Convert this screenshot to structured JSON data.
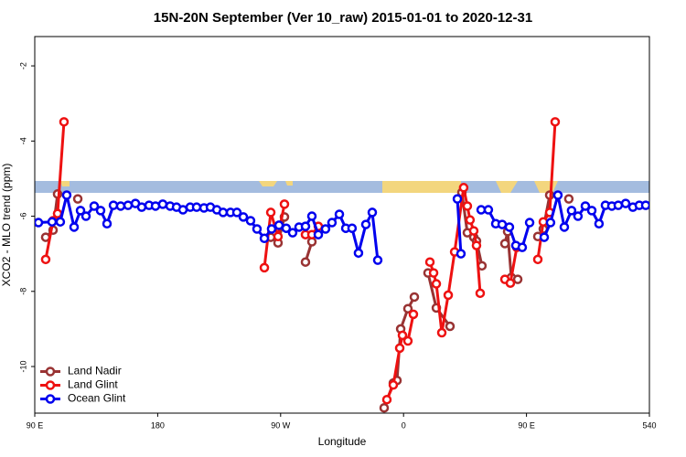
{
  "chart_data": {
    "type": "line",
    "title": "15N-20N September (Ver 10_raw)   2015-01-01 to 2020-12-31",
    "x_label": "Longitude",
    "y_label": "XCO2 - MLO trend (ppm)",
    "xlim": [
      90,
      540
    ],
    "xticks": [
      {
        "value": 90,
        "label": "90 E"
      },
      180,
      {
        "value": 270,
        "label": "90 W"
      },
      {
        "value": 360,
        "label": "0"
      },
      {
        "value": 450,
        "label": "90 E"
      },
      540
    ],
    "ylim": [
      -11.24,
      -1.22
    ],
    "yticks": [
      -2,
      -4,
      -6,
      -8,
      -10
    ],
    "legend": "bottom-left",
    "series": [
      {
        "name": "Land Nadir",
        "color": "#993333",
        "x": [
          98,
          103.4,
          106.7,
          null,
          121.5,
          null,
          262.8,
          268.1,
          272.8,
          null,
          288.2,
          292.9,
          null,
          345.8,
          352.5,
          355.2,
          357.9,
          363.2,
          367.9,
          null,
          377.9,
          384,
          394,
          null,
          402.7,
          406.7,
          411.4,
          413.4,
          417.4,
          null,
          434.2,
          436.2,
          438.9,
          443.6,
          null,
          458.3,
          462.3,
          467,
          null,
          481
        ],
        "values": [
          -6.56,
          -6.37,
          -5.41,
          null,
          -5.54,
          null,
          -6.56,
          -6.71,
          -6.02,
          null,
          -7.22,
          -6.68,
          null,
          -11.1,
          -10.44,
          -10.37,
          -9.0,
          -8.46,
          -8.15,
          null,
          -7.51,
          -8.44,
          -8.93,
          null,
          -5.37,
          -6.44,
          -6.56,
          -6.66,
          -7.32,
          null,
          -6.73,
          -6.41,
          -7.63,
          -7.68,
          null,
          -6.54,
          -6.34,
          -5.44,
          null,
          -5.54
        ]
      },
      {
        "name": "Land Glint",
        "color": "#ee1111",
        "x": [
          98,
          103.4,
          106.7,
          111.4,
          null,
          258.1,
          262.8,
          268.1,
          272.8,
          null,
          288.2,
          292.9,
          297.6,
          null,
          347.8,
          352.5,
          357.2,
          359.2,
          363.2,
          367.2,
          null,
          379.3,
          382,
          384,
          388,
          392.7,
          397.4,
          404,
          406.7,
          408.7,
          411.4,
          413.4,
          416.1,
          null,
          434.2,
          438.2,
          442.9,
          null,
          458.3,
          462.3,
          467,
          471
        ],
        "values": [
          -7.15,
          -6.12,
          -5.93,
          -3.49,
          null,
          -7.37,
          -5.9,
          -6.54,
          -5.68,
          null,
          -6.49,
          -6.49,
          -6.27,
          null,
          -10.88,
          -10.49,
          -9.51,
          -9.17,
          -9.32,
          -8.61,
          null,
          -7.22,
          -7.51,
          -7.8,
          -9.1,
          -8.1,
          -6.95,
          -5.24,
          -5.73,
          -6.1,
          -6.39,
          -6.78,
          -8.05,
          null,
          -7.68,
          -7.78,
          -6.83,
          null,
          -7.15,
          -6.15,
          -5.9,
          -3.49
        ]
      },
      {
        "name": "Ocean Glint",
        "color": "#0000ee",
        "x": [
          92.7,
          102.7,
          108.7,
          113.4,
          118.8,
          123.5,
          127.5,
          133.5,
          138.2,
          142.9,
          147.6,
          152.9,
          158.3,
          163.7,
          168.3,
          173.7,
          178.4,
          183.7,
          189.1,
          193.8,
          198.5,
          203.8,
          208.5,
          213.9,
          218.6,
          223.3,
          227.9,
          233.3,
          238,
          242.7,
          248,
          252.7,
          258.1,
          263.4,
          268.8,
          274.1,
          278.8,
          283.5,
          288.2,
          292.9,
          297.6,
          302.9,
          307.6,
          313,
          317.7,
          322.3,
          327,
          332.4,
          337.1,
          341.1,
          null,
          399.4,
          402,
          null,
          416.8,
          422.1,
          427.5,
          432.2,
          437.5,
          442.2,
          446.9,
          452.3,
          null,
          463,
          467.6,
          473,
          477.7,
          483,
          487.7,
          493.1,
          497.8,
          503.1,
          507.8,
          512.5,
          517.2,
          522.6,
          527.9,
          532.6,
          537.3
        ],
        "values": [
          -6.17,
          -6.15,
          -6.15,
          -5.44,
          -6.29,
          -5.85,
          -6.0,
          -5.73,
          -5.85,
          -6.2,
          -5.71,
          -5.73,
          -5.71,
          -5.66,
          -5.76,
          -5.71,
          -5.73,
          -5.68,
          -5.73,
          -5.76,
          -5.83,
          -5.76,
          -5.76,
          -5.78,
          -5.76,
          -5.83,
          -5.9,
          -5.9,
          -5.9,
          -6.02,
          -6.12,
          -6.34,
          -6.59,
          -6.34,
          -6.24,
          -6.32,
          -6.44,
          -6.29,
          -6.27,
          -6.0,
          -6.49,
          -6.34,
          -6.17,
          -5.95,
          -6.32,
          -6.32,
          -6.98,
          -6.22,
          -5.9,
          -7.17,
          null,
          -5.54,
          -7.0,
          null,
          -5.83,
          -5.83,
          -6.2,
          -6.22,
          -6.29,
          -6.78,
          -6.83,
          -6.17,
          null,
          -6.56,
          -6.17,
          -5.44,
          -6.29,
          -5.85,
          -6.0,
          -5.73,
          -5.85,
          -6.2,
          -5.71,
          -5.73,
          -5.71,
          -5.66,
          -5.76,
          -5.71,
          -5.71
        ]
      }
    ]
  }
}
